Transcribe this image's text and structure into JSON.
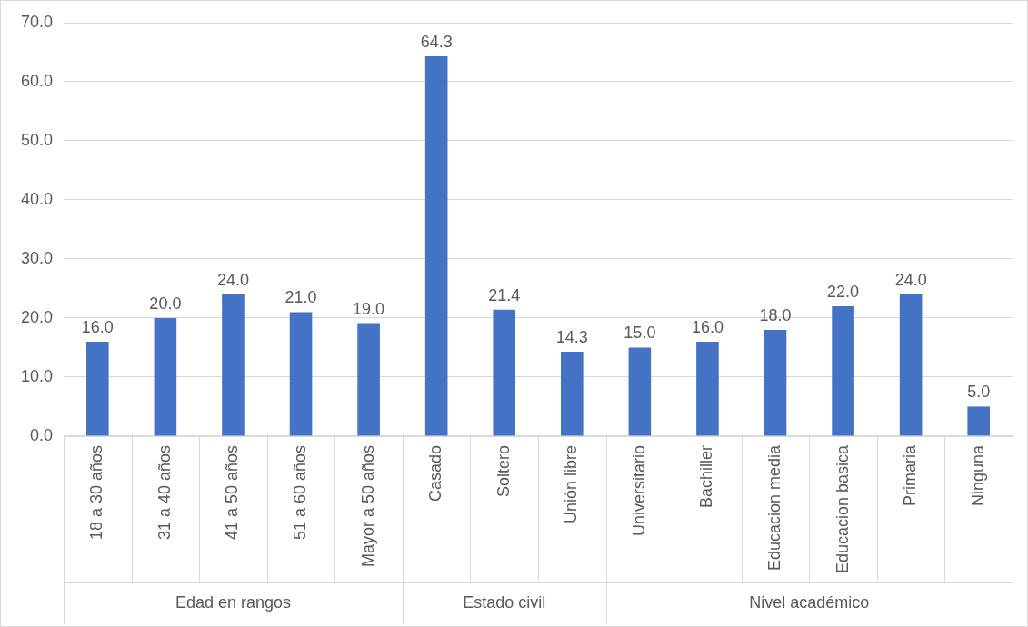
{
  "chart_data": {
    "type": "bar",
    "categories": [
      "18 a 30 años",
      "31 a 40 años",
      "41 a 50 años",
      "51 a 60 años",
      "Mayor a 50 años",
      "Casado",
      "Soltero",
      "Unión libre",
      "Universitario",
      "Bachiller",
      "Educacion media",
      "Educacion basica",
      "Primaria",
      "Ninguna"
    ],
    "values": [
      16.0,
      20.0,
      24.0,
      21.0,
      19.0,
      64.3,
      21.4,
      14.3,
      15.0,
      16.0,
      18.0,
      22.0,
      24.0,
      5.0
    ],
    "value_labels": [
      "16.0",
      "20.0",
      "24.0",
      "21.0",
      "19.0",
      "64.3",
      "21.4",
      "14.3",
      "15.0",
      "16.0",
      "18.0",
      "22.0",
      "24.0",
      "5.0"
    ],
    "color": "#4472c4",
    "ylim": [
      0,
      70
    ],
    "yticks": [
      {
        "value": 0,
        "label": "0.0"
      },
      {
        "value": 10,
        "label": "10.0"
      },
      {
        "value": 20,
        "label": "20.0"
      },
      {
        "value": 30,
        "label": "30.0"
      },
      {
        "value": 40,
        "label": "40.0"
      },
      {
        "value": 50,
        "label": "50.0"
      },
      {
        "value": 60,
        "label": "60.0"
      },
      {
        "value": 70,
        "label": "70.0"
      }
    ],
    "grid": "y",
    "annotations": [
      "Edad en rangos",
      "Estado civil",
      "Nivel académico"
    ]
  }
}
